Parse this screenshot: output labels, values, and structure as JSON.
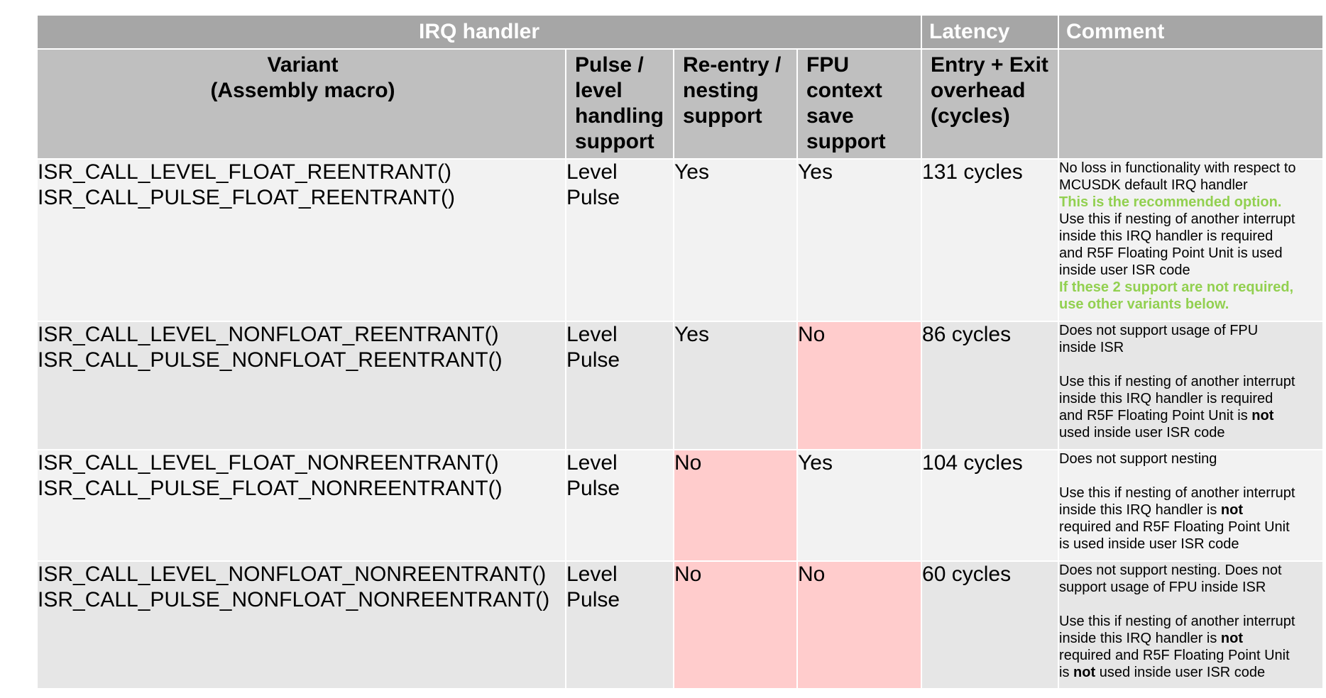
{
  "header": {
    "irq_handler": "IRQ handler",
    "latency": "Latency",
    "comment": "Comment"
  },
  "columns": {
    "variant_line1": "Variant",
    "variant_line2": "(Assembly macro)",
    "pulse_level": [
      "Pulse /",
      "level",
      "handling",
      "support"
    ],
    "reentry": [
      "Re-entry /",
      "nesting",
      "support"
    ],
    "fpu": [
      "FPU",
      "context",
      "save",
      "support"
    ],
    "overhead": [
      "Entry + Exit",
      "overhead",
      "(cycles)"
    ]
  },
  "rows": [
    {
      "variants": [
        "ISR_CALL_LEVEL_FLOAT_REENTRANT()",
        "ISR_CALL_PULSE_FLOAT_REENTRANT()"
      ],
      "modes": [
        "Level",
        "Pulse"
      ],
      "reentry": "Yes",
      "fpu": "Yes",
      "latency": "131 cycles",
      "comment": {
        "l1": "No loss in functionality with respect to",
        "l2": "MCUSDK default IRQ handler",
        "rec": "This is the recommended option.",
        "l3": "Use this if nesting of another interrupt",
        "l4": "inside this IRQ handler is required",
        "l5": "and R5F Floating Point Unit is used",
        "l6": "inside user ISR code",
        "note1": "If these 2 support are not required,",
        "note2": "use other variants below."
      }
    },
    {
      "variants": [
        "ISR_CALL_LEVEL_NONFLOAT_REENTRANT()",
        "ISR_CALL_PULSE_NONFLOAT_REENTRANT()"
      ],
      "modes": [
        "Level",
        "Pulse"
      ],
      "reentry": "Yes",
      "fpu": "No",
      "latency": "86 cycles",
      "comment": {
        "l1": "Does not support usage of FPU",
        "l2": "inside ISR",
        "l3": "Use this if nesting of another interrupt",
        "l4": "inside this IRQ handler is required",
        "l5a": "and R5F Floating Point Unit is",
        "l5b": "not",
        "l6": "used inside user ISR code"
      }
    },
    {
      "variants": [
        "ISR_CALL_LEVEL_FLOAT_NONREENTRANT()",
        "ISR_CALL_PULSE_FLOAT_NONREENTRANT()"
      ],
      "modes": [
        "Level",
        "Pulse"
      ],
      "reentry": "No",
      "fpu": "Yes",
      "latency": "104 cycles",
      "comment": {
        "l1": "Does not support nesting",
        "l2": "Use this if nesting of another interrupt",
        "l3a": "inside this IRQ handler is",
        "l3b": "not",
        "l4": "required and R5F Floating Point Unit",
        "l5": "is used inside user ISR code"
      }
    },
    {
      "variants": [
        "ISR_CALL_LEVEL_NONFLOAT_NONREENTRANT()",
        "ISR_CALL_PULSE_NONFLOAT_NONREENTRANT()"
      ],
      "modes": [
        "Level",
        "Pulse"
      ],
      "reentry": "No",
      "fpu": "No",
      "latency": "60 cycles",
      "comment": {
        "l1": "Does not support nesting. Does not",
        "l2": "support usage of FPU inside ISR",
        "l3": "Use this if nesting of another interrupt",
        "l4a": "inside this IRQ handler is",
        "l4b": "not",
        "l5": "required and R5F Floating Point Unit",
        "l6a": "is",
        "l6b": "not",
        "l6c": "used inside user ISR code"
      }
    }
  ],
  "colors": {
    "super_header": "#a6a6a6",
    "column_header": "#bfbfbf",
    "row_light": "#f2f2f2",
    "row_dark": "#e6e6e6",
    "not_supported": "#ffcccc",
    "recommended_green": "#92d050"
  }
}
